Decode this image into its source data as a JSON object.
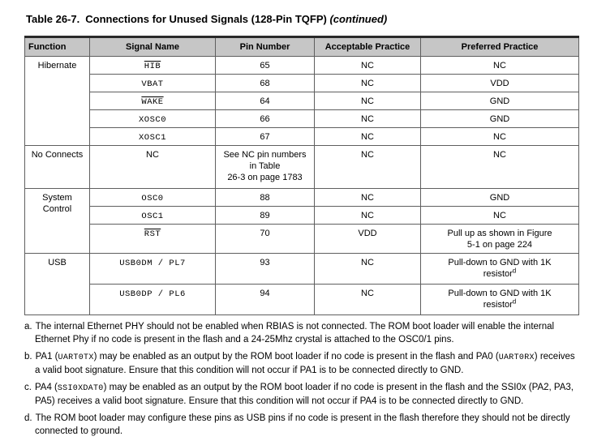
{
  "title": {
    "prefix": "Table 26-7.",
    "main": "Connections for Unused Signals (128-Pin TQFP)",
    "continued": "(continued)"
  },
  "table": {
    "headers": [
      "Function",
      "Signal Name",
      "Pin Number",
      "Acceptable Practice",
      "Preferred Practice"
    ],
    "header_bg": "#c6c6c6",
    "rows": [
      {
        "function": "Hibernate",
        "function_rowspan": 5,
        "signal": "HIB",
        "active_low": true,
        "pin": "65",
        "acceptable": "NC",
        "preferred": "NC"
      },
      {
        "signal": "VBAT",
        "pin": "68",
        "acceptable": "NC",
        "preferred": "VDD"
      },
      {
        "signal": "WAKE",
        "active_low": true,
        "pin": "64",
        "acceptable": "NC",
        "preferred": "GND"
      },
      {
        "signal": "XOSC0",
        "pin": "66",
        "acceptable": "NC",
        "preferred": "GND"
      },
      {
        "signal": "XOSC1",
        "pin": "67",
        "acceptable": "NC",
        "preferred": "NC"
      },
      {
        "function": "No Connects",
        "function_rowspan": 1,
        "signal": "NC",
        "pin_lines": [
          "See NC pin numbers",
          "in Table",
          "26-3 on page 1783"
        ],
        "acceptable": "NC",
        "preferred": "NC"
      },
      {
        "function": "System Control",
        "function_rowspan": 3,
        "signal": "OSC0",
        "pin": "88",
        "acceptable": "NC",
        "preferred": "GND"
      },
      {
        "signal": "OSC1",
        "pin": "89",
        "acceptable": "NC",
        "preferred": "NC"
      },
      {
        "signal": "RST",
        "active_low": true,
        "pin": "70",
        "acceptable": "VDD",
        "preferred_lines": [
          "Pull up as shown in Figure",
          "5-1 on page 224"
        ]
      },
      {
        "function": "USB",
        "function_rowspan": 2,
        "signal": "USB0DM / PL7",
        "pin": "93",
        "acceptable": "NC",
        "preferred_lines": [
          "Pull-down to GND with 1K",
          "resistor"
        ],
        "preferred_sup": "d"
      },
      {
        "signal": "USB0DP / PL6",
        "pin": "94",
        "acceptable": "NC",
        "preferred_lines": [
          "Pull-down to GND with 1K",
          "resistor"
        ],
        "preferred_sup": "d"
      }
    ]
  },
  "footnotes": [
    {
      "marker": "a.",
      "segments": [
        {
          "t": "The internal Ethernet PHY should not be enabled when RBIAS is not connected. The ROM boot loader will enable the internal Ethernet Phy if no code is present in the flash and a 24-25Mhz crystal is attached to the OSC0/1 pins."
        }
      ]
    },
    {
      "marker": "b.",
      "segments": [
        {
          "t": "PA1 ("
        },
        {
          "t": "UART0TX",
          "mono": true
        },
        {
          "t": ") may be enabled as an output by the ROM boot loader if no code is present in the flash and PA0 ("
        },
        {
          "t": "UART0RX",
          "mono": true
        },
        {
          "t": ") receives a valid boot signature. Ensure that this condition will not occur if PA1 is to be connected directly to GND."
        }
      ]
    },
    {
      "marker": "c.",
      "segments": [
        {
          "t": "PA4 ("
        },
        {
          "t": "SSI0XDAT0",
          "mono": true
        },
        {
          "t": ") may be enabled as an output by the ROM boot loader if no code is present in the flash and the SSI0x (PA2, PA3, PA5) receives a valid boot signature. Ensure that this condition will not occur if PA4 is to be connected directly to GND."
        }
      ]
    },
    {
      "marker": "d.",
      "segments": [
        {
          "t": "The ROM boot loader may configure these pins as USB pins if no code is present in the flash therefore they should not be directly connected to ground."
        }
      ]
    }
  ]
}
